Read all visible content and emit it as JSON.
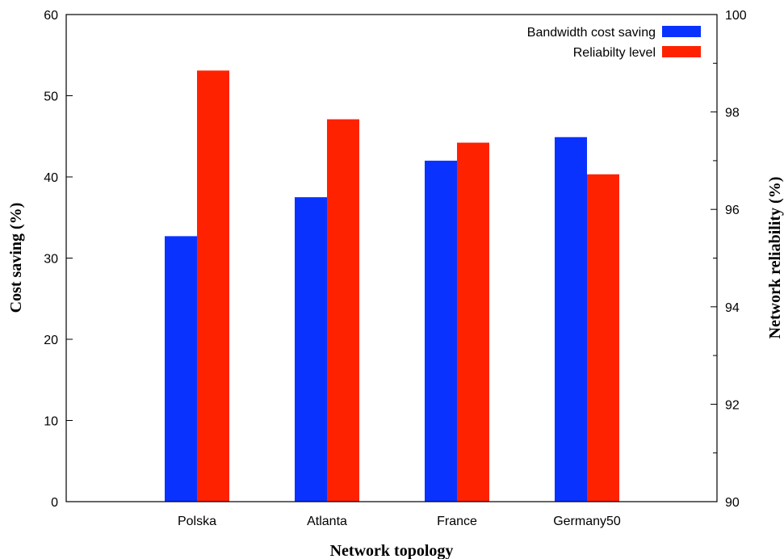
{
  "chart_data": {
    "type": "bar",
    "categories": [
      "Polska",
      "Atlanta",
      "France",
      "Germany50"
    ],
    "series": [
      {
        "name": "Bandwidth cost saving",
        "axis": "left",
        "color": "#0a32ff",
        "values": [
          32.7,
          37.5,
          42.0,
          44.9
        ]
      },
      {
        "name": "Reliabilty level",
        "axis": "right",
        "color": "#ff2200",
        "values": [
          98.85,
          97.85,
          97.37,
          96.72
        ]
      }
    ],
    "xlabel": "Network topology",
    "ylabel": "Cost saving (%)",
    "y2label": "Network reliability (%)",
    "ylim": [
      0,
      60
    ],
    "y2lim": [
      90,
      100
    ],
    "yticks": [
      "0",
      "10",
      "20",
      "30",
      "40",
      "50",
      "60"
    ],
    "y2ticks": [
      "90",
      "92",
      "94",
      "96",
      "98",
      "100"
    ],
    "grid": false,
    "legend": "top-right"
  }
}
